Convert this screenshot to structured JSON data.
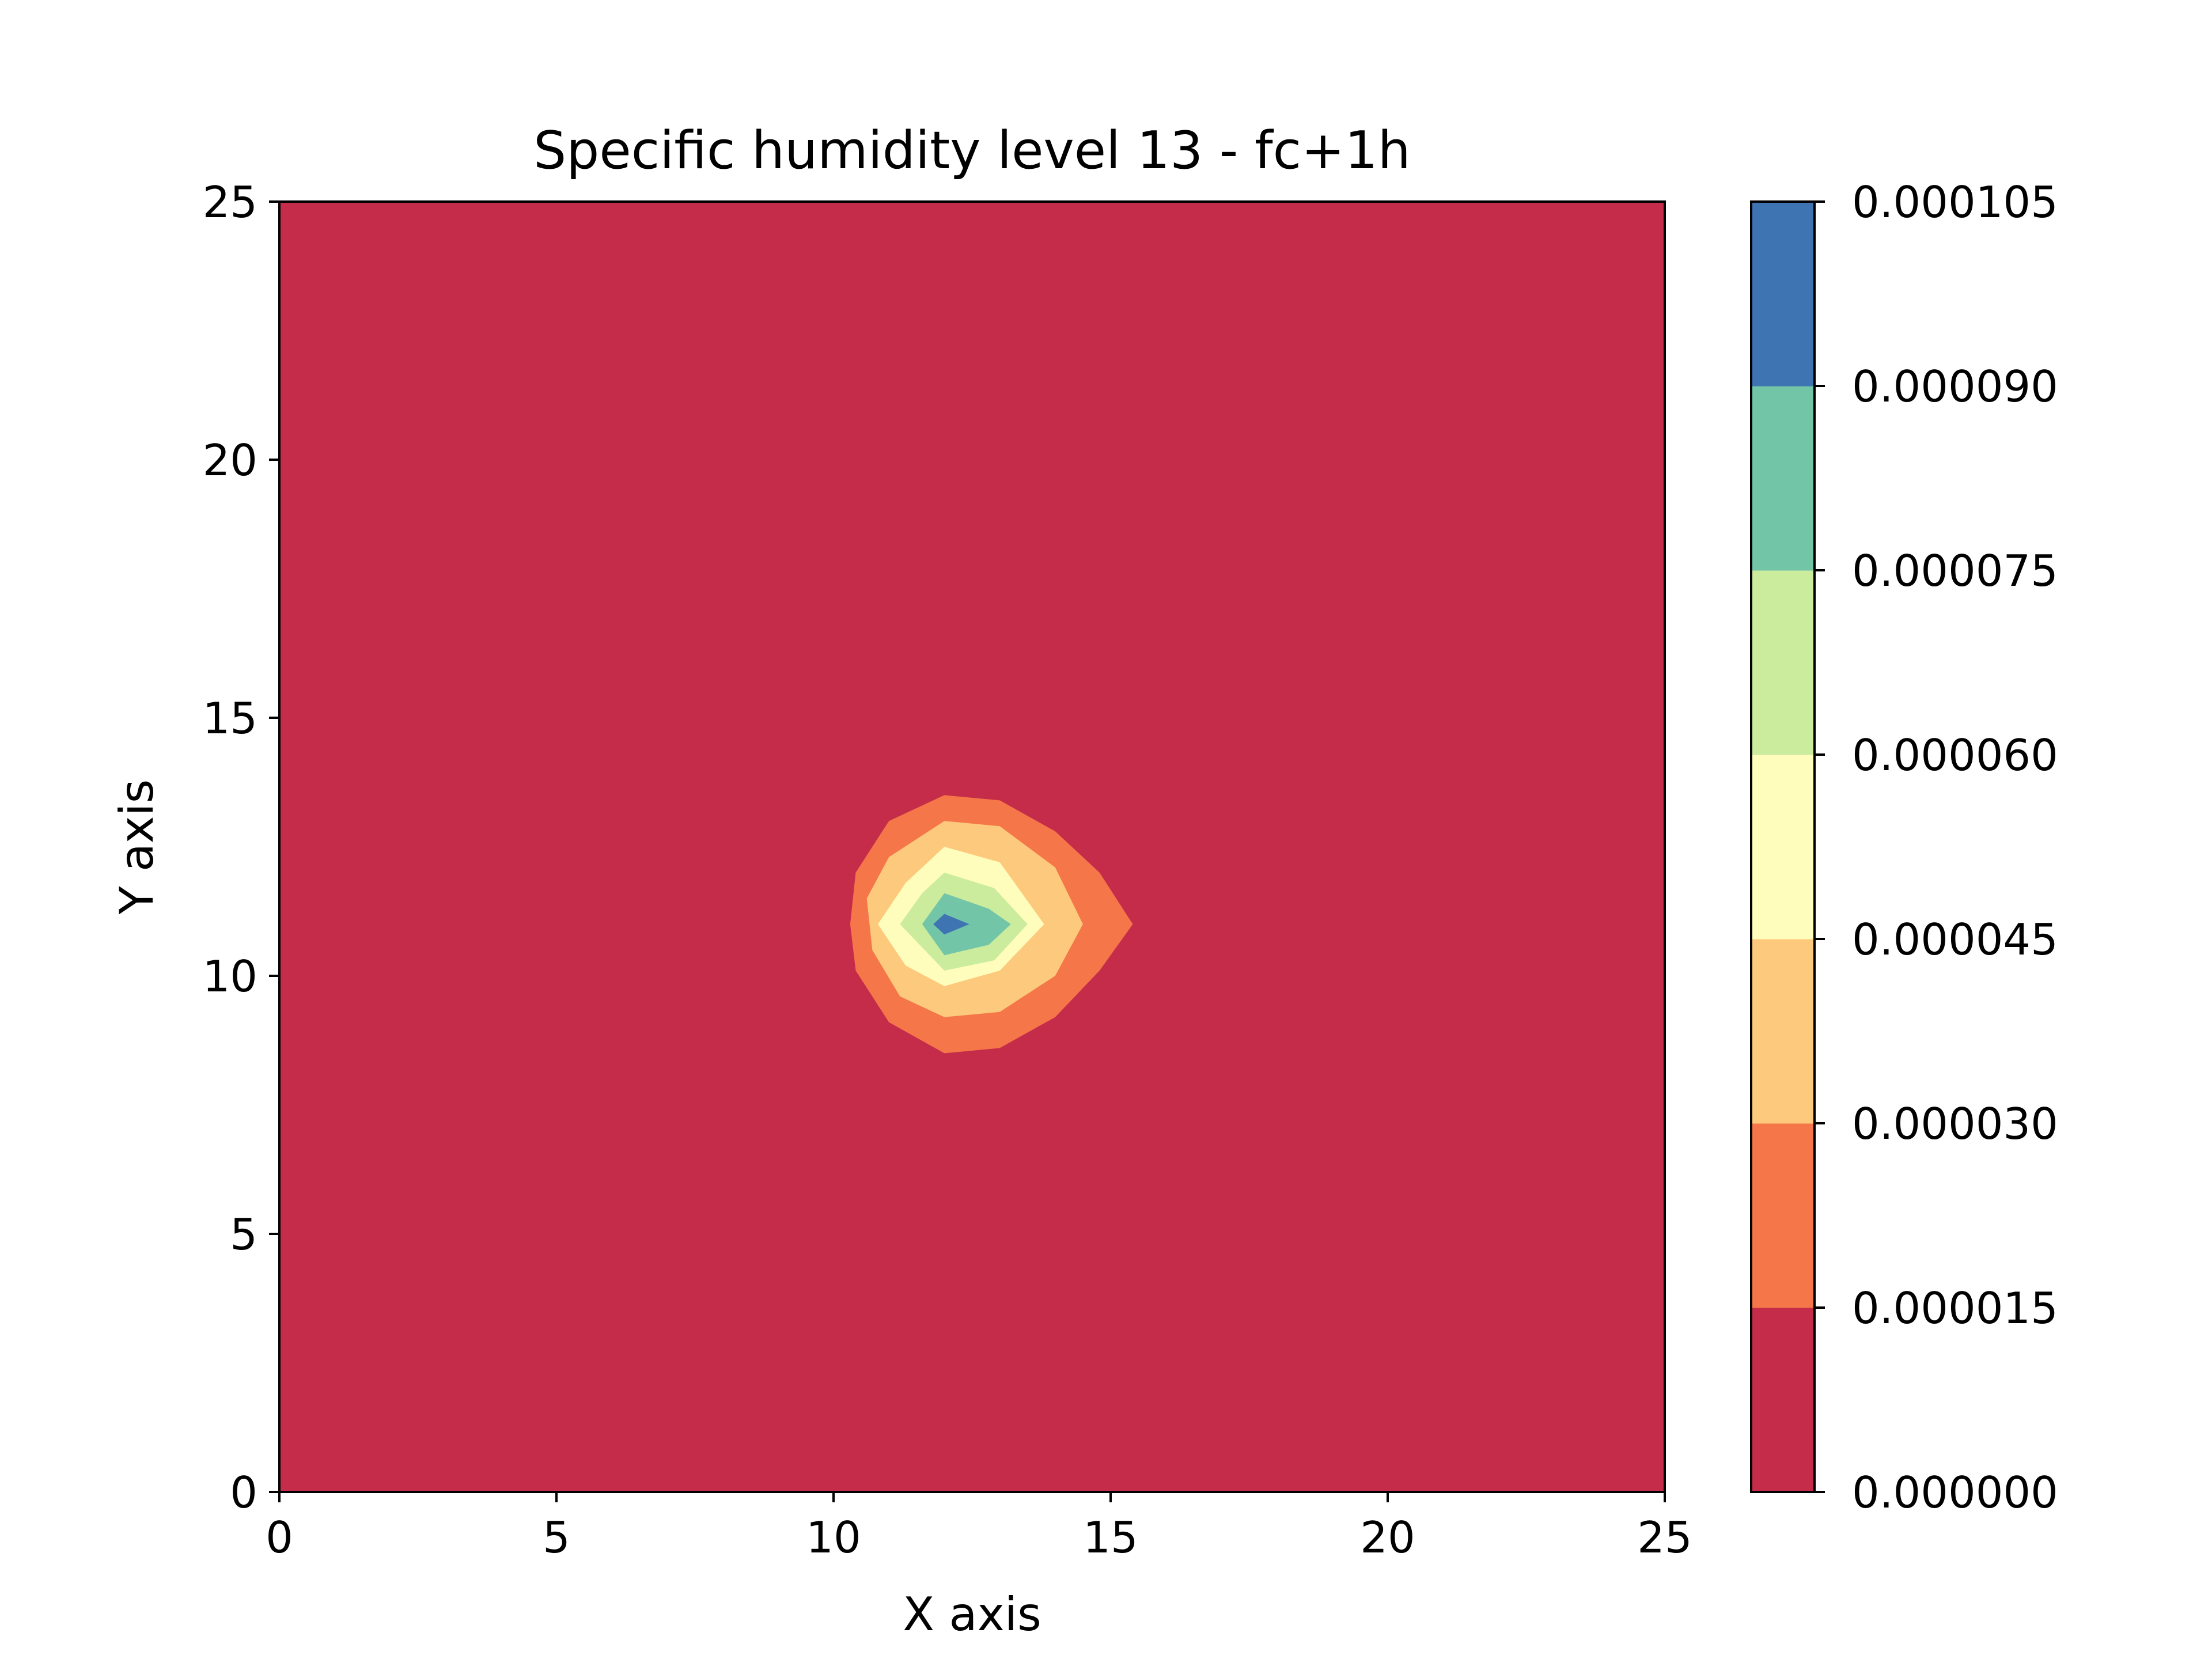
{
  "chart_data": {
    "type": "contour",
    "title": "Specific humidity level 13 - fc+1h",
    "xlabel": "X axis",
    "ylabel": "Y axis",
    "xlim": [
      0,
      25
    ],
    "ylim": [
      0,
      25
    ],
    "xticks": [
      "0",
      "5",
      "10",
      "15",
      "20",
      "25"
    ],
    "yticks": [
      "0",
      "5",
      "10",
      "15",
      "20",
      "25"
    ],
    "grid": false,
    "colorbar": {
      "position": "right",
      "levels": [
        "0.000000",
        "0.000015",
        "0.000030",
        "0.000045",
        "0.000060",
        "0.000075",
        "0.000090",
        "0.000105"
      ],
      "colors": [
        "#c42c4a",
        "#f47649",
        "#fdc97c",
        "#fefdbc",
        "#cbeb9d",
        "#72c5a7",
        "#3f74b3"
      ]
    },
    "contours": [
      {
        "level": "0.000015",
        "color": "#f47649",
        "points": [
          [
            12,
            13.5
          ],
          [
            13,
            13.4
          ],
          [
            14,
            12.8
          ],
          [
            14.8,
            12
          ],
          [
            15.4,
            11
          ],
          [
            14.8,
            10.1
          ],
          [
            14,
            9.2
          ],
          [
            13,
            8.6
          ],
          [
            12,
            8.5
          ],
          [
            11,
            9.1
          ],
          [
            10.4,
            10.1
          ],
          [
            10.3,
            11
          ],
          [
            10.4,
            12
          ],
          [
            11,
            13
          ]
        ]
      },
      {
        "level": "0.000030",
        "color": "#fdc97c",
        "points": [
          [
            12,
            13
          ],
          [
            13,
            12.9
          ],
          [
            14,
            12.1
          ],
          [
            14.5,
            11
          ],
          [
            14,
            10
          ],
          [
            13,
            9.3
          ],
          [
            12,
            9.2
          ],
          [
            11.2,
            9.6
          ],
          [
            10.7,
            10.5
          ],
          [
            10.6,
            11.5
          ],
          [
            11,
            12.3
          ]
        ]
      },
      {
        "level": "0.000045",
        "color": "#fefdbc",
        "points": [
          [
            12,
            12.5
          ],
          [
            13,
            12.2
          ],
          [
            13.8,
            11
          ],
          [
            13,
            10.1
          ],
          [
            12,
            9.8
          ],
          [
            11.3,
            10.2
          ],
          [
            10.8,
            11
          ],
          [
            11.3,
            11.8
          ]
        ]
      },
      {
        "level": "0.000060",
        "color": "#cbeb9d",
        "points": [
          [
            12,
            12
          ],
          [
            12.9,
            11.7
          ],
          [
            13.5,
            11
          ],
          [
            12.9,
            10.3
          ],
          [
            12,
            10.1
          ],
          [
            11.2,
            11
          ],
          [
            11.6,
            11.6
          ]
        ]
      },
      {
        "level": "0.000075",
        "color": "#72c5a7",
        "points": [
          [
            12,
            11.6
          ],
          [
            12.8,
            11.3
          ],
          [
            13.2,
            11
          ],
          [
            12.8,
            10.6
          ],
          [
            12,
            10.4
          ],
          [
            11.6,
            11
          ]
        ]
      },
      {
        "level": "0.000090",
        "color": "#3f74b3",
        "points": [
          [
            12,
            11.2
          ],
          [
            12.45,
            11
          ],
          [
            12,
            10.8
          ],
          [
            11.8,
            11
          ]
        ]
      }
    ]
  }
}
